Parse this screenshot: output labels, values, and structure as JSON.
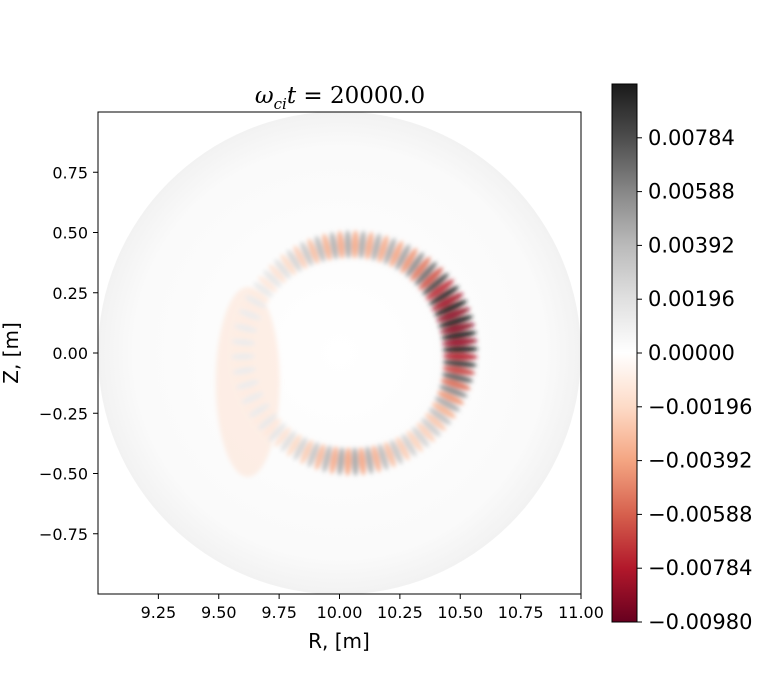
{
  "chart_data": {
    "type": "heatmap",
    "title_parts": {
      "omega": "ω",
      "sub": "ci",
      "t": "t",
      "rest": " = 20000.0"
    },
    "xlabel": "R, [m]",
    "ylabel": "Z, [m]",
    "xlim": [
      9.0,
      11.0
    ],
    "ylim": [
      -1.0,
      1.0
    ],
    "x_ticks": [
      "9.25",
      "9.50",
      "9.75",
      "10.00",
      "10.25",
      "10.50",
      "10.75",
      "11.00"
    ],
    "x_tick_values": [
      9.25,
      9.5,
      9.75,
      10.0,
      10.25,
      10.5,
      10.75,
      11.0
    ],
    "y_ticks": [
      "0.75",
      "0.50",
      "0.25",
      "0.00",
      "−0.25",
      "−0.50",
      "−0.75"
    ],
    "y_tick_values": [
      0.75,
      0.5,
      0.25,
      0.0,
      -0.25,
      -0.5,
      -0.75
    ],
    "domain": {
      "center_r": 10.0,
      "center_z": 0.0,
      "radius": 1.0
    },
    "mode_ring": {
      "center_r": 10.05,
      "center_z": 0.0,
      "radius": 0.45,
      "poloidal_mode": 48
    },
    "colorbar": {
      "min": -0.0098,
      "max": 0.0098,
      "ticks": [
        "0.00784",
        "0.00588",
        "0.00392",
        "0.00196",
        "0.00000",
        "−0.00196",
        "−0.00392",
        "−0.00588",
        "−0.00784",
        "−0.00980"
      ],
      "tick_values": [
        0.00784,
        0.00588,
        0.00392,
        0.00196,
        0.0,
        -0.00196,
        -0.00392,
        -0.00588,
        -0.00784,
        -0.0098
      ],
      "colormap": "RdGy_r",
      "color_low": "#67001f",
      "color_mid": "#ffffff",
      "color_high": "#1a1a1a"
    }
  }
}
